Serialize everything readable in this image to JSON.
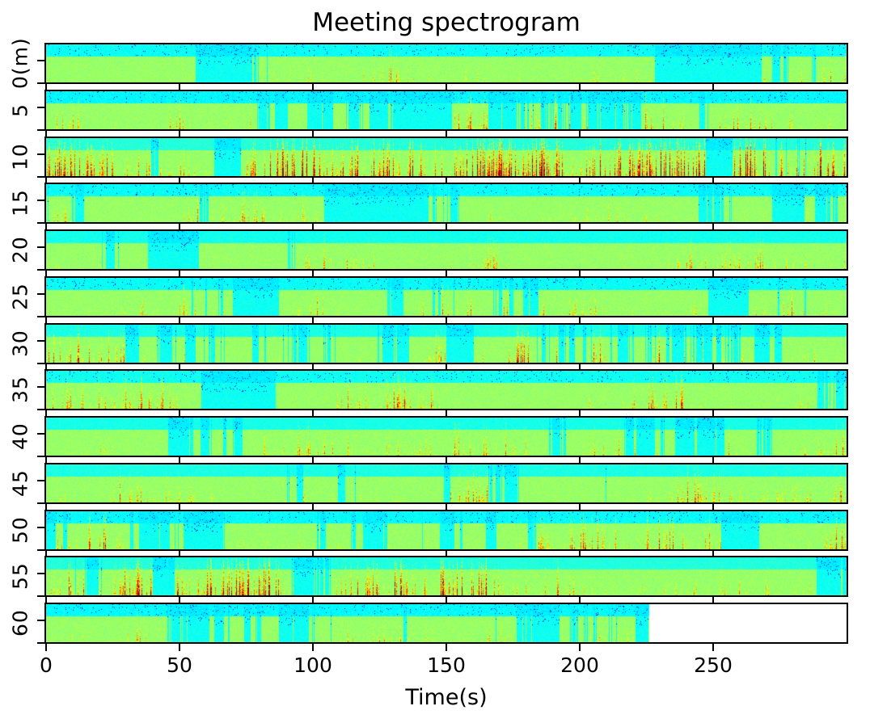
{
  "chart_data": {
    "type": "heatmap",
    "subtype": "spectrogram-grid",
    "title": "Meeting spectrogram",
    "xlabel": "Time(s)",
    "x_range": [
      0,
      300
    ],
    "x_ticks": [
      0,
      50,
      100,
      150,
      200,
      250
    ],
    "row_duration_s": 300,
    "colormap": "jet",
    "palette": {
      "quiet": "#3fe0d8",
      "background": "#bdee6e",
      "streak_mid": "#ffd21e",
      "streak_hot": "#ff7a00",
      "streak_peak": "#dd1500",
      "speckle": "#1a5bff",
      "empty": "#ffffff",
      "frame": "#000000"
    },
    "rows": [
      {
        "label": "0(m)",
        "start_min": 0,
        "end_s": 300,
        "intensity": 0.62,
        "top_cyan": 0.6,
        "quiet_spans_s": [
          [
            56,
            77
          ],
          [
            228,
            268
          ]
        ]
      },
      {
        "label": "5",
        "start_min": 5,
        "end_s": 300,
        "intensity": 0.68,
        "top_cyan": 0.78,
        "quiet_spans_s": [
          [
            130,
            152
          ]
        ]
      },
      {
        "label": "10",
        "start_min": 10,
        "end_s": 300,
        "intensity": 0.92,
        "top_cyan": 0.2,
        "quiet_spans_s": [
          [
            63,
            73
          ],
          [
            247,
            257
          ]
        ]
      },
      {
        "label": "15",
        "start_min": 15,
        "end_s": 300,
        "intensity": 0.62,
        "top_cyan": 0.62,
        "quiet_spans_s": [
          [
            104,
            136
          ],
          [
            272,
            284
          ]
        ]
      },
      {
        "label": "20",
        "start_min": 20,
        "end_s": 300,
        "intensity": 0.6,
        "top_cyan": 0.45,
        "quiet_spans_s": [
          [
            38,
            57
          ]
        ]
      },
      {
        "label": "25",
        "start_min": 25,
        "end_s": 300,
        "intensity": 0.62,
        "top_cyan": 0.62,
        "quiet_spans_s": [
          [
            70,
            87
          ],
          [
            248,
            262
          ]
        ]
      },
      {
        "label": "30",
        "start_min": 30,
        "end_s": 300,
        "intensity": 0.72,
        "top_cyan": 0.35,
        "quiet_spans_s": [
          [
            150,
            160
          ]
        ]
      },
      {
        "label": "35",
        "start_min": 35,
        "end_s": 300,
        "intensity": 0.68,
        "top_cyan": 0.52,
        "quiet_spans_s": [
          [
            58,
            86
          ]
        ]
      },
      {
        "label": "40",
        "start_min": 40,
        "end_s": 300,
        "intensity": 0.66,
        "top_cyan": 0.4,
        "quiet_spans_s": []
      },
      {
        "label": "45",
        "start_min": 45,
        "end_s": 300,
        "intensity": 0.72,
        "top_cyan": 0.35,
        "quiet_spans_s": []
      },
      {
        "label": "50",
        "start_min": 50,
        "end_s": 300,
        "intensity": 0.7,
        "top_cyan": 0.68,
        "quiet_spans_s": [
          [
            253,
            267
          ]
        ]
      },
      {
        "label": "55",
        "start_min": 55,
        "end_s": 300,
        "intensity": 0.82,
        "top_cyan": 0.25,
        "quiet_spans_s": [
          [
            40,
            48
          ]
        ]
      },
      {
        "label": "60",
        "start_min": 60,
        "end_s": 226,
        "intensity": 0.55,
        "top_cyan": 0.72,
        "quiet_spans_s": []
      }
    ]
  }
}
